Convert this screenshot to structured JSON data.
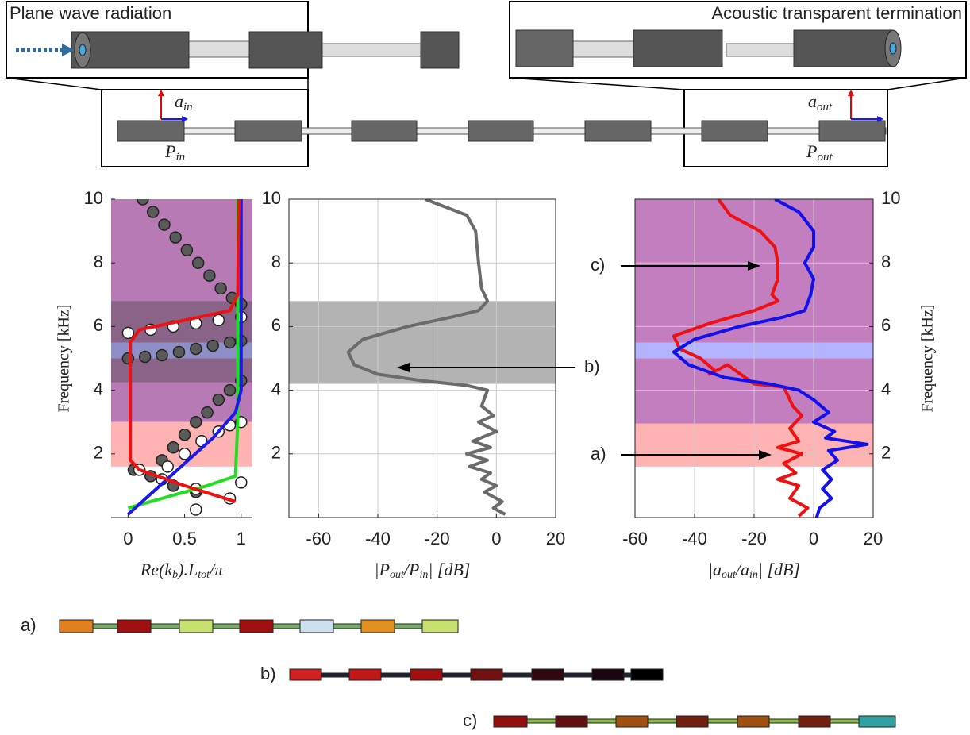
{
  "diagram": {
    "left_inset_title": "Plane wave radiation",
    "right_inset_title": "Acoustic transparent termination",
    "labels": [
      {
        "base": "a",
        "sub": "in"
      },
      {
        "base": "P",
        "sub": "in"
      },
      {
        "base": "a",
        "sub": "out"
      },
      {
        "base": "P",
        "sub": "out"
      }
    ]
  },
  "chart_data": [
    {
      "type": "line",
      "xlabel": [
        "Re(k",
        "b",
        ").L",
        "tot",
        "/π"
      ],
      "ylabel": "Frequency [kHz]",
      "xlim": [
        -0.15,
        1.1
      ],
      "ylim": [
        0,
        10
      ],
      "xticks": [
        0,
        0.5,
        1
      ],
      "yticks": [
        2,
        4,
        6,
        8,
        10
      ],
      "grid": false,
      "y_axis_side": "left",
      "bands": [
        {
          "from": 3,
          "to": 10,
          "color": "#b87ab5"
        },
        {
          "from": 1.6,
          "to": 3,
          "color": "#ffb3b3"
        },
        {
          "from": 4.25,
          "to": 6.8,
          "color": "#8a6388"
        },
        {
          "from": 5,
          "to": 5.5,
          "color": "#8f8fc8"
        }
      ],
      "series": [
        {
          "mode": "markers",
          "color": "#5a5a5a",
          "x": [
            0.13,
            0.22,
            0.32,
            0.42,
            0.52,
            0.62,
            0.72,
            0.82,
            0.92,
            1,
            0,
            0.15,
            0.3,
            0.45,
            0.6,
            0.75,
            0.9,
            1,
            0.3,
            0.4,
            0.5,
            0.6,
            0.7,
            0.8,
            0.9,
            1,
            0.05,
            0.2,
            0.4,
            0.6
          ],
          "values": [
            10,
            9.6,
            9.2,
            8.8,
            8.4,
            8,
            7.6,
            7.2,
            6.9,
            6.7,
            5,
            5.05,
            5.1,
            5.2,
            5.3,
            5.4,
            5.5,
            5.55,
            1.8,
            2.2,
            2.6,
            3,
            3.3,
            3.7,
            4,
            4.3,
            1.5,
            1.3,
            1,
            0.8
          ]
        },
        {
          "mode": "markers",
          "color": "#ffffff",
          "x": [
            0,
            0.2,
            0.4,
            0.6,
            0.8,
            1,
            0.35,
            0.5,
            0.65,
            0.8,
            0.9,
            1,
            0.1,
            0.3,
            0.6,
            0.9,
            1,
            0.6
          ],
          "values": [
            5.8,
            5.9,
            6,
            6.1,
            6.2,
            6.3,
            1.6,
            2,
            2.4,
            2.7,
            2.9,
            3,
            1.5,
            1.2,
            0.9,
            0.6,
            1.1,
            0.25
          ]
        },
        {
          "mode": "line",
          "color": "#22dd22",
          "x": [
            0,
            0.3,
            0.7,
            0.95,
            0.97,
            0.97
          ],
          "values": [
            0.3,
            0.6,
            1,
            1.3,
            3,
            10
          ]
        },
        {
          "mode": "line",
          "color": "#1a1aee",
          "x": [
            0,
            0.25,
            0.5,
            0.75,
            0.95,
            1,
            1
          ],
          "values": [
            0.1,
            0.9,
            1.7,
            2.5,
            3.3,
            4,
            10
          ]
        },
        {
          "mode": "line",
          "color": "#ee1111",
          "x": [
            0.95,
            0.5,
            0.1,
            0.02,
            0.02,
            0.02,
            0.1,
            0.5,
            0.9,
            0.97,
            0.98
          ],
          "values": [
            0.5,
            1,
            1.5,
            1.8,
            3,
            5.5,
            5.9,
            6.2,
            6.5,
            7,
            10
          ]
        }
      ]
    },
    {
      "type": "line",
      "xlabel": [
        "|P",
        "out",
        "/P",
        "in",
        "| [dB]"
      ],
      "xlim": [
        -70,
        20
      ],
      "ylim": [
        0,
        10
      ],
      "xticks": [
        -60,
        -40,
        -20,
        0,
        20
      ],
      "yticks": [
        2,
        4,
        6,
        8,
        10
      ],
      "grid": true,
      "y_axis_side": "left",
      "bands": [
        {
          "from": 4.2,
          "to": 6.8,
          "color": "#b3b3b3"
        }
      ],
      "annotations": [
        "b)"
      ],
      "series": [
        {
          "mode": "line",
          "color": "#6b6b6b",
          "x": [
            -24,
            -10,
            -7,
            -6,
            -5,
            -3,
            -6,
            -15,
            -30,
            -45,
            -50,
            -48,
            -40,
            -25,
            -10,
            -3,
            -5,
            -1,
            -6,
            0,
            -8,
            -2,
            -10,
            -3,
            -9,
            -2,
            -5,
            0,
            -4,
            2,
            -1,
            3
          ],
          "values": [
            10,
            9.5,
            9,
            8,
            7.2,
            6.8,
            6.5,
            6.3,
            6,
            5.6,
            5.2,
            4.8,
            4.5,
            4.3,
            4.15,
            4,
            3.5,
            3.2,
            3,
            2.7,
            2.4,
            2.2,
            2,
            1.8,
            1.6,
            1.4,
            1.2,
            1,
            0.8,
            0.5,
            0.3,
            0.1
          ]
        }
      ]
    },
    {
      "type": "line",
      "xlabel": [
        "|a",
        "out",
        "/a",
        "in",
        "| [dB]"
      ],
      "ylabel": "Frequency [kHz]",
      "xlim": [
        -60,
        20
      ],
      "ylim": [
        0,
        10
      ],
      "xticks": [
        -60,
        -40,
        -20,
        0,
        20
      ],
      "yticks": [
        2,
        4,
        6,
        8,
        10
      ],
      "grid": true,
      "y_axis_side": "right",
      "bands": [
        {
          "from": 1.6,
          "to": 2.95,
          "color": "#ffb3b3"
        },
        {
          "from": 2.95,
          "to": 10,
          "color": "#c37ec0"
        },
        {
          "from": 5,
          "to": 5.5,
          "color": "#b3b3ff"
        }
      ],
      "annotations": [
        "c)",
        "a)"
      ],
      "series": [
        {
          "mode": "line",
          "color": "#ee1111",
          "x": [
            -32,
            -28,
            -18,
            -13,
            -12,
            -12,
            -14,
            -12,
            -20,
            -35,
            -47,
            -45,
            -38,
            -33,
            -35,
            -29,
            -20,
            -10,
            -7,
            -4,
            -8,
            -5,
            -12,
            -4,
            -10,
            -6,
            -12,
            -5,
            -8,
            -2,
            -5
          ],
          "values": [
            10,
            9.5,
            9,
            8.5,
            8,
            7.5,
            7,
            6.8,
            6.5,
            6.1,
            5.7,
            5.3,
            5,
            4.6,
            4.5,
            4.8,
            4.2,
            4.1,
            3.5,
            3.2,
            2.8,
            2.4,
            2.2,
            2,
            1.7,
            1.4,
            1.2,
            1,
            0.6,
            0.3,
            0.05
          ]
        },
        {
          "mode": "line",
          "color": "#1111ee",
          "x": [
            -13,
            -5,
            0,
            0,
            -3,
            0,
            -1,
            -3,
            -10,
            -25,
            -40,
            -47,
            -42,
            -30,
            -15,
            -5,
            0,
            5,
            0,
            7,
            4,
            18,
            5,
            8,
            3,
            6,
            3,
            6,
            2,
            1
          ],
          "values": [
            10,
            9.6,
            9,
            8.5,
            8,
            7.5,
            7,
            6.5,
            6.3,
            6,
            5.6,
            5.2,
            4.8,
            4.4,
            4.2,
            4,
            3.7,
            3.3,
            3,
            2.7,
            2.5,
            2.3,
            2.1,
            1.8,
            1.5,
            1.2,
            0.9,
            0.6,
            0.3,
            0
          ]
        }
      ]
    }
  ],
  "mode_shapes": {
    "labels": [
      "a)",
      "b)",
      "c)"
    ]
  }
}
